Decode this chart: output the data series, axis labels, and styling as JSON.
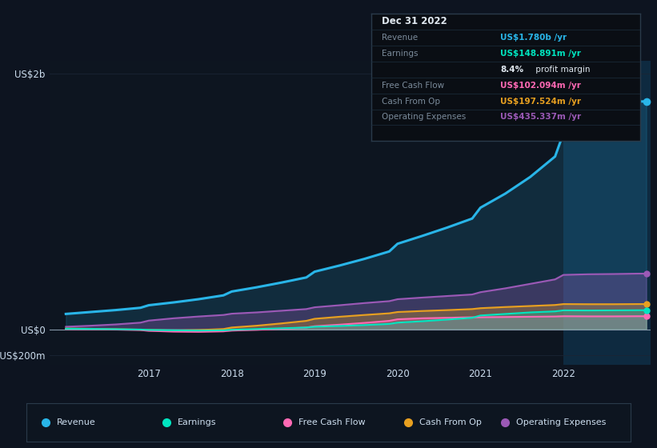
{
  "background_color": "#0d1420",
  "plot_bg_color": "#0d1520",
  "grid_color": "#1a2535",
  "ylabel_2b": "US$2b",
  "ylabel_0": "US$0",
  "ylabel_neg200m": "-US$200m",
  "x_ticks": [
    "2017",
    "2018",
    "2019",
    "2020",
    "2021",
    "2022"
  ],
  "years": [
    2016.0,
    2016.3,
    2016.6,
    2016.9,
    2017.0,
    2017.3,
    2017.6,
    2017.9,
    2018.0,
    2018.3,
    2018.6,
    2018.9,
    2019.0,
    2019.3,
    2019.6,
    2019.9,
    2020.0,
    2020.3,
    2020.6,
    2020.9,
    2021.0,
    2021.3,
    2021.6,
    2021.9,
    2022.0,
    2022.3,
    2022.6,
    2022.9,
    2023.0
  ],
  "revenue": [
    120,
    135,
    150,
    168,
    188,
    210,
    235,
    265,
    295,
    328,
    365,
    405,
    450,
    498,
    550,
    608,
    668,
    730,
    795,
    865,
    950,
    1060,
    1190,
    1350,
    1530,
    1650,
    1730,
    1780,
    1780
  ],
  "earnings": [
    5,
    3,
    1,
    -2,
    -5,
    -8,
    -10,
    -8,
    -4,
    2,
    8,
    14,
    20,
    26,
    33,
    42,
    52,
    63,
    76,
    90,
    108,
    120,
    132,
    140,
    148,
    147,
    148,
    149,
    149
  ],
  "free_cash_flow": [
    3,
    1,
    -2,
    -6,
    -12,
    -18,
    -20,
    -16,
    -10,
    -4,
    4,
    14,
    24,
    36,
    50,
    66,
    78,
    86,
    90,
    94,
    94,
    96,
    98,
    100,
    102,
    101,
    101,
    102,
    102
  ],
  "cash_from_op": [
    6,
    4,
    1,
    -3,
    -6,
    -10,
    -6,
    2,
    14,
    28,
    46,
    66,
    82,
    98,
    112,
    125,
    135,
    143,
    150,
    158,
    165,
    174,
    182,
    190,
    197,
    196,
    196,
    197,
    197
  ],
  "operating_expenses": [
    20,
    28,
    38,
    52,
    68,
    86,
    100,
    112,
    122,
    132,
    145,
    158,
    172,
    188,
    205,
    220,
    235,
    248,
    260,
    272,
    290,
    320,
    355,
    390,
    425,
    430,
    432,
    435,
    435
  ],
  "revenue_color": "#29b5e8",
  "earnings_color": "#00e5c0",
  "free_cash_flow_color": "#ff69b4",
  "cash_from_op_color": "#e8a020",
  "operating_expenses_color": "#9b59b6",
  "highlight_x_start": 2022.0,
  "highlight_x_end": 2023.05,
  "ylim": [
    -280,
    2100
  ],
  "xlim": [
    2015.8,
    2023.05
  ],
  "info_box": {
    "date": "Dec 31 2022",
    "revenue_label": "Revenue",
    "revenue_value": "US$1.780b /yr",
    "revenue_color": "#29b5e8",
    "earnings_label": "Earnings",
    "earnings_value": "US$148.891m /yr",
    "earnings_color": "#00e5c0",
    "margin_pct": "8.4%",
    "margin_text": " profit margin",
    "fcf_label": "Free Cash Flow",
    "fcf_value": "US$102.094m /yr",
    "fcf_color": "#ff69b4",
    "cfop_label": "Cash From Op",
    "cfop_value": "US$197.524m /yr",
    "cfop_color": "#e8a020",
    "opex_label": "Operating Expenses",
    "opex_value": "US$435.337m /yr",
    "opex_color": "#9b59b6"
  },
  "legend_items": [
    {
      "label": "Revenue",
      "color": "#29b5e8"
    },
    {
      "label": "Earnings",
      "color": "#00e5c0"
    },
    {
      "label": "Free Cash Flow",
      "color": "#ff69b4"
    },
    {
      "label": "Cash From Op",
      "color": "#e8a020"
    },
    {
      "label": "Operating Expenses",
      "color": "#9b59b6"
    }
  ]
}
